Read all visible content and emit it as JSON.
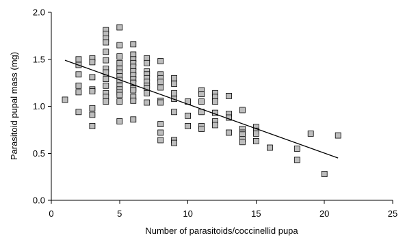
{
  "chart_data": {
    "type": "scatter",
    "title": "",
    "xlabel": "Number of parasitoids/coccinellid pupa",
    "ylabel": "Parasitoid pupal mass (mg)",
    "xlim": [
      0,
      25
    ],
    "ylim": [
      0.0,
      2.0
    ],
    "xticks": [
      "0",
      "5",
      "10",
      "15",
      "20",
      "25"
    ],
    "yticks": [
      "0.0",
      "0.5",
      "1.0",
      "1.5",
      "2.0"
    ],
    "grid": false,
    "legend": "none",
    "marker": "square",
    "marker_color": "#bdbdbd",
    "points": [
      [
        1,
        1.07
      ],
      [
        2,
        1.5
      ],
      [
        2,
        1.44
      ],
      [
        2,
        1.34
      ],
      [
        2,
        1.22
      ],
      [
        2,
        1.15
      ],
      [
        2,
        0.94
      ],
      [
        3,
        1.51
      ],
      [
        3,
        1.47
      ],
      [
        3,
        1.31
      ],
      [
        3,
        1.18
      ],
      [
        3,
        1.16
      ],
      [
        3,
        0.98
      ],
      [
        3,
        0.91
      ],
      [
        3,
        0.79
      ],
      [
        4,
        1.81
      ],
      [
        4,
        1.77
      ],
      [
        4,
        1.72
      ],
      [
        4,
        1.68
      ],
      [
        4,
        1.58
      ],
      [
        4,
        1.49
      ],
      [
        4,
        1.4
      ],
      [
        4,
        1.36
      ],
      [
        4,
        1.29
      ],
      [
        4,
        1.22
      ],
      [
        4,
        1.14
      ],
      [
        4,
        1.1
      ],
      [
        4,
        1.05
      ],
      [
        5,
        1.84
      ],
      [
        5,
        1.65
      ],
      [
        5,
        1.53
      ],
      [
        5,
        1.46
      ],
      [
        5,
        1.4
      ],
      [
        5,
        1.36
      ],
      [
        5,
        1.32
      ],
      [
        5,
        1.28
      ],
      [
        5,
        1.22
      ],
      [
        5,
        1.18
      ],
      [
        5,
        1.15
      ],
      [
        5,
        1.12
      ],
      [
        5,
        1.05
      ],
      [
        5,
        0.84
      ],
      [
        6,
        1.66
      ],
      [
        6,
        1.55
      ],
      [
        6,
        1.5
      ],
      [
        6,
        1.46
      ],
      [
        6,
        1.42
      ],
      [
        6,
        1.37
      ],
      [
        6,
        1.33
      ],
      [
        6,
        1.29
      ],
      [
        6,
        1.25
      ],
      [
        6,
        1.19
      ],
      [
        6,
        1.17
      ],
      [
        6,
        1.1
      ],
      [
        6,
        1.06
      ],
      [
        6,
        0.86
      ],
      [
        7,
        1.51
      ],
      [
        7,
        1.46
      ],
      [
        7,
        1.37
      ],
      [
        7,
        1.34
      ],
      [
        7,
        1.3
      ],
      [
        7,
        1.26
      ],
      [
        7,
        1.22
      ],
      [
        7,
        1.19
      ],
      [
        7,
        1.14
      ],
      [
        7,
        1.04
      ],
      [
        8,
        1.48
      ],
      [
        8,
        1.34
      ],
      [
        8,
        1.3
      ],
      [
        8,
        1.26
      ],
      [
        8,
        1.2
      ],
      [
        8,
        1.06
      ],
      [
        8,
        1.04
      ],
      [
        8,
        0.81
      ],
      [
        8,
        0.72
      ],
      [
        8,
        0.64
      ],
      [
        9,
        1.3
      ],
      [
        9,
        1.24
      ],
      [
        9,
        1.14
      ],
      [
        9,
        1.08
      ],
      [
        9,
        0.94
      ],
      [
        9,
        0.64
      ],
      [
        9,
        0.61
      ],
      [
        10,
        1.05
      ],
      [
        10,
        0.9
      ],
      [
        10,
        0.79
      ],
      [
        11,
        1.17
      ],
      [
        11,
        1.13
      ],
      [
        11,
        1.05
      ],
      [
        11,
        0.94
      ],
      [
        11,
        0.79
      ],
      [
        11,
        0.76
      ],
      [
        12,
        1.14
      ],
      [
        12,
        1.1
      ],
      [
        12,
        1.05
      ],
      [
        12,
        0.93
      ],
      [
        12,
        0.84
      ],
      [
        12,
        0.8
      ],
      [
        13,
        1.11
      ],
      [
        13,
        0.92
      ],
      [
        13,
        0.88
      ],
      [
        13,
        0.72
      ],
      [
        14,
        0.96
      ],
      [
        14,
        0.76
      ],
      [
        14,
        0.72
      ],
      [
        14,
        0.7
      ],
      [
        14,
        0.65
      ],
      [
        14,
        0.62
      ],
      [
        15,
        0.78
      ],
      [
        15,
        0.74
      ],
      [
        15,
        0.71
      ],
      [
        15,
        0.63
      ],
      [
        16,
        0.56
      ],
      [
        18,
        0.55
      ],
      [
        18,
        0.43
      ],
      [
        19,
        0.71
      ],
      [
        20,
        0.28
      ],
      [
        21,
        0.69
      ]
    ],
    "trendline": {
      "x": [
        1,
        21
      ],
      "y": [
        1.49,
        0.45
      ]
    }
  }
}
